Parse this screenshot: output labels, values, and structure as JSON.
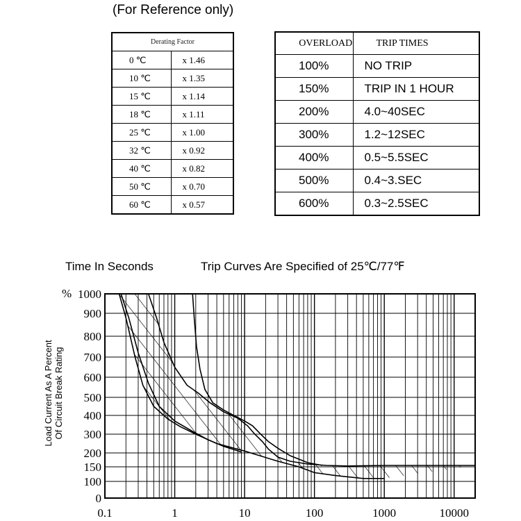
{
  "header": {
    "note": "(For Reference only)"
  },
  "derating": {
    "title": "Derating Factor",
    "rows": [
      {
        "temp": "0 ℃",
        "factor": "x 1.46"
      },
      {
        "temp": "10 ℃",
        "factor": "x 1.35"
      },
      {
        "temp": "15 ℃",
        "factor": "x 1.14"
      },
      {
        "temp": "18 ℃",
        "factor": "x 1.11"
      },
      {
        "temp": "25 ℃",
        "factor": "x 1.00"
      },
      {
        "temp": "32 ℃",
        "factor": "x 0.92"
      },
      {
        "temp": "40 ℃",
        "factor": "x 0.82"
      },
      {
        "temp": "50 ℃",
        "factor": "x 0.70"
      },
      {
        "temp": "60 ℃",
        "factor": "x 0.57"
      }
    ]
  },
  "overload": {
    "col1": "OVERLOAD",
    "col2": "TRIP TIMES",
    "rows": [
      {
        "load": "100%",
        "time": "NO TRIP"
      },
      {
        "load": "150%",
        "time": "TRIP IN 1 HOUR"
      },
      {
        "load": "200%",
        "time": "4.0~40SEC"
      },
      {
        "load": "300%",
        "time": "1.2~12SEC"
      },
      {
        "load": "400%",
        "time": "0.5~5.5SEC"
      },
      {
        "load": "500%",
        "time": "0.4~3.SEC"
      },
      {
        "load": "600%",
        "time": "0.3~2.5SEC"
      }
    ]
  },
  "chart_data": {
    "type": "line",
    "title_left": "Time In Seconds",
    "title_right": "Trip Curves Are Specified of 25℃/77℉",
    "ylabel_line1": "Load Current As A Percent",
    "ylabel_line2": "Of Circuit Break Rating",
    "y_unit_label": "%",
    "xscale": "log",
    "xlim": [
      0.1,
      20000
    ],
    "ylim": [
      0,
      1000
    ],
    "x_ticks": [
      0.1,
      1,
      10,
      100,
      1000,
      10000
    ],
    "x_tick_labels": [
      "0.1",
      "1",
      "10",
      "100",
      "1000",
      "10000"
    ],
    "y_ticks": [
      1000,
      900,
      800,
      700,
      600,
      500,
      400,
      300,
      200,
      150,
      100,
      0
    ],
    "y_tick_labels": [
      "1000",
      "900",
      "800",
      "700",
      "600",
      "500",
      "400",
      "300",
      "200",
      "150",
      "100",
      "0"
    ],
    "grid": true,
    "band": "hatched",
    "series": [
      {
        "x": [
          0.16,
          0.2,
          0.27,
          0.35,
          0.5,
          0.8,
          1.2,
          2,
          4,
          10,
          30,
          60,
          100,
          200,
          500,
          1000
        ],
        "y": [
          1000,
          880,
          700,
          560,
          450,
          380,
          340,
          300,
          250,
          210,
          170,
          150,
          130,
          120,
          110,
          110
        ]
      },
      {
        "x": [
          0.42,
          0.55,
          0.7,
          1,
          1.5,
          2.2,
          3.2,
          5,
          8,
          11,
          14,
          18,
          22,
          30,
          45,
          80,
          150,
          300,
          1000,
          5000,
          20000
        ],
        "y": [
          1000,
          880,
          770,
          650,
          560,
          520,
          470,
          420,
          385,
          345,
          300,
          260,
          220,
          185,
          170,
          160,
          155,
          153,
          155,
          155,
          155
        ]
      },
      {
        "x": [
          0.17,
          0.22,
          0.3,
          0.42,
          0.6,
          1,
          1.8,
          3,
          5,
          9
        ],
        "y": [
          1000,
          880,
          720,
          570,
          450,
          370,
          315,
          270,
          235,
          205
        ]
      },
      {
        "x": [
          1.8,
          1.9,
          2.05,
          2.3,
          2.7,
          3.5,
          5,
          7,
          10,
          13,
          17,
          22,
          30,
          45,
          80,
          130
        ],
        "y": [
          1000,
          880,
          750,
          640,
          540,
          470,
          430,
          400,
          370,
          345,
          300,
          260,
          225,
          190,
          165,
          155
        ]
      }
    ]
  }
}
